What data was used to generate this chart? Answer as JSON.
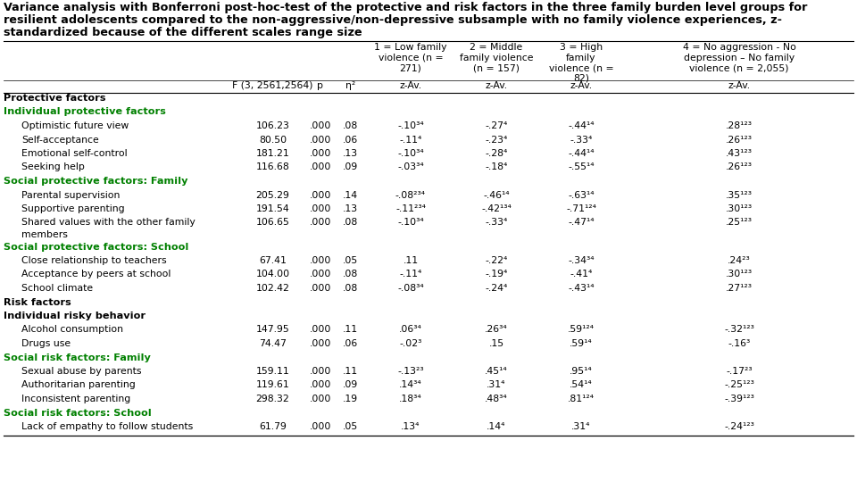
{
  "title_line1": "Variance analysis with Bonferroni post-hoc-test of the protective and risk factors in the three family burden level groups for",
  "title_line2": "resilient adolescents compared to the non-aggressive/non-depressive subsample with no family violence experiences, z-",
  "title_line3": "standardized because of the different scales range size",
  "col_header1": [
    "1 = Low family\nviolence (n =\n271)",
    "2 = Middle\nfamily violence\n(n = 157)",
    "3 = High\nfamily\nviolence (n =\n82)",
    "4 = No aggression - No\ndepression – No family\nviolence (n = 2,055)"
  ],
  "col_header2": [
    "F (3, 2561,2564)",
    "p",
    "η²",
    "z-Av.",
    "z-Av.",
    "z-Av.",
    "z-Av."
  ],
  "rows": [
    {
      "label": "Protective factors",
      "type": "bold_black",
      "indent": 0,
      "data": null
    },
    {
      "label": "Individual protective factors",
      "type": "bold_green",
      "indent": 0,
      "data": null
    },
    {
      "label": "Optimistic future view",
      "type": "data",
      "indent": 1,
      "data": [
        "106.23",
        ".000",
        ".08",
        "-.10³⁴",
        "-.27⁴",
        "-.44¹⁴",
        ".28¹²³"
      ]
    },
    {
      "label": "Self-acceptance",
      "type": "data",
      "indent": 1,
      "data": [
        "80.50",
        ".000",
        ".06",
        "-.11⁴",
        "-.23⁴",
        "-.33⁴",
        ".26¹²³"
      ]
    },
    {
      "label": "Emotional self-control",
      "type": "data",
      "indent": 1,
      "data": [
        "181.21",
        ".000",
        ".13",
        "-.10³⁴",
        "-.28⁴",
        "-.44¹⁴",
        ".43¹²³"
      ]
    },
    {
      "label": "Seeking help",
      "type": "data",
      "indent": 1,
      "data": [
        "116.68",
        ".000",
        ".09",
        "-.03³⁴",
        "-.18⁴",
        "-.55¹⁴",
        ".26¹²³"
      ]
    },
    {
      "label": "Social protective factors: Family",
      "type": "bold_green",
      "indent": 0,
      "data": null
    },
    {
      "label": "Parental supervision",
      "type": "data",
      "indent": 1,
      "data": [
        "205.29",
        ".000",
        ".14",
        "-.08²³⁴",
        "-.46¹⁴",
        "-.63¹⁴",
        ".35¹²³"
      ]
    },
    {
      "label": "Supportive parenting",
      "type": "data",
      "indent": 1,
      "data": [
        "191.54",
        ".000",
        ".13",
        "-.11²³⁴",
        "-.42¹³⁴",
        "-.71¹²⁴",
        ".30¹²³"
      ]
    },
    {
      "label": "Shared values with the other family",
      "type": "data2",
      "indent": 1,
      "label2": "members",
      "data": [
        "106.65",
        ".000",
        ".08",
        "-.10³⁴",
        "-.33⁴",
        "-.47¹⁴",
        ".25¹²³"
      ]
    },
    {
      "label": "Social protective factors: School",
      "type": "bold_green",
      "indent": 0,
      "data": null
    },
    {
      "label": "Close relationship to teachers",
      "type": "data",
      "indent": 1,
      "data": [
        "67.41",
        ".000",
        ".05",
        ".11",
        "-.22⁴",
        "-.34³⁴",
        ".24²³"
      ]
    },
    {
      "label": "Acceptance by peers at school",
      "type": "data",
      "indent": 1,
      "data": [
        "104.00",
        ".000",
        ".08",
        "-.11⁴",
        "-.19⁴",
        "-.41⁴",
        ".30¹²³"
      ]
    },
    {
      "label": "School climate",
      "type": "data",
      "indent": 1,
      "data": [
        "102.42",
        ".000",
        ".08",
        "-.08³⁴",
        "-.24⁴",
        "-.43¹⁴",
        ".27¹²³"
      ]
    },
    {
      "label": "Risk factors",
      "type": "bold_black",
      "indent": 0,
      "data": null
    },
    {
      "label": "Individual risky behavior",
      "type": "bold_black",
      "indent": 0,
      "data": null
    },
    {
      "label": "Alcohol consumption",
      "type": "data",
      "indent": 1,
      "data": [
        "147.95",
        ".000",
        ".11",
        ".06³⁴",
        ".26³⁴",
        ".59¹²⁴",
        "-.32¹²³"
      ]
    },
    {
      "label": "Drugs use",
      "type": "data",
      "indent": 1,
      "data": [
        "74.47",
        ".000",
        ".06",
        "-.02³",
        ".15",
        ".59¹⁴",
        "-.16³"
      ]
    },
    {
      "label": "Social risk factors: Family",
      "type": "bold_green",
      "indent": 0,
      "data": null
    },
    {
      "label": "Sexual abuse by parents",
      "type": "data",
      "indent": 1,
      "data": [
        "159.11",
        ".000",
        ".11",
        "-.13²³",
        ".45¹⁴",
        ".95¹⁴",
        "-.17²³"
      ]
    },
    {
      "label": "Authoritarian parenting",
      "type": "data",
      "indent": 1,
      "data": [
        "119.61",
        ".000",
        ".09",
        ".14³⁴",
        ".31⁴",
        ".54¹⁴",
        "-.25¹²³"
      ]
    },
    {
      "label": "Inconsistent parenting",
      "type": "data",
      "indent": 1,
      "data": [
        "298.32",
        ".000",
        ".19",
        ".18³⁴",
        ".48³⁴",
        ".81¹²⁴",
        "-.39¹²³"
      ]
    },
    {
      "label": "Social risk factors: School",
      "type": "bold_green",
      "indent": 0,
      "data": null
    },
    {
      "label": "Lack of empathy to follow students",
      "type": "data",
      "indent": 1,
      "data": [
        "61.79",
        ".000",
        ".05",
        ".13⁴",
        ".14⁴",
        ".31⁴",
        "-.24¹²³"
      ]
    }
  ],
  "green_color": "#008000",
  "black_color": "#000000",
  "bg_color": "#ffffff",
  "title_fontsize": 9.2,
  "data_fontsize": 7.8,
  "header_fontsize": 7.8
}
